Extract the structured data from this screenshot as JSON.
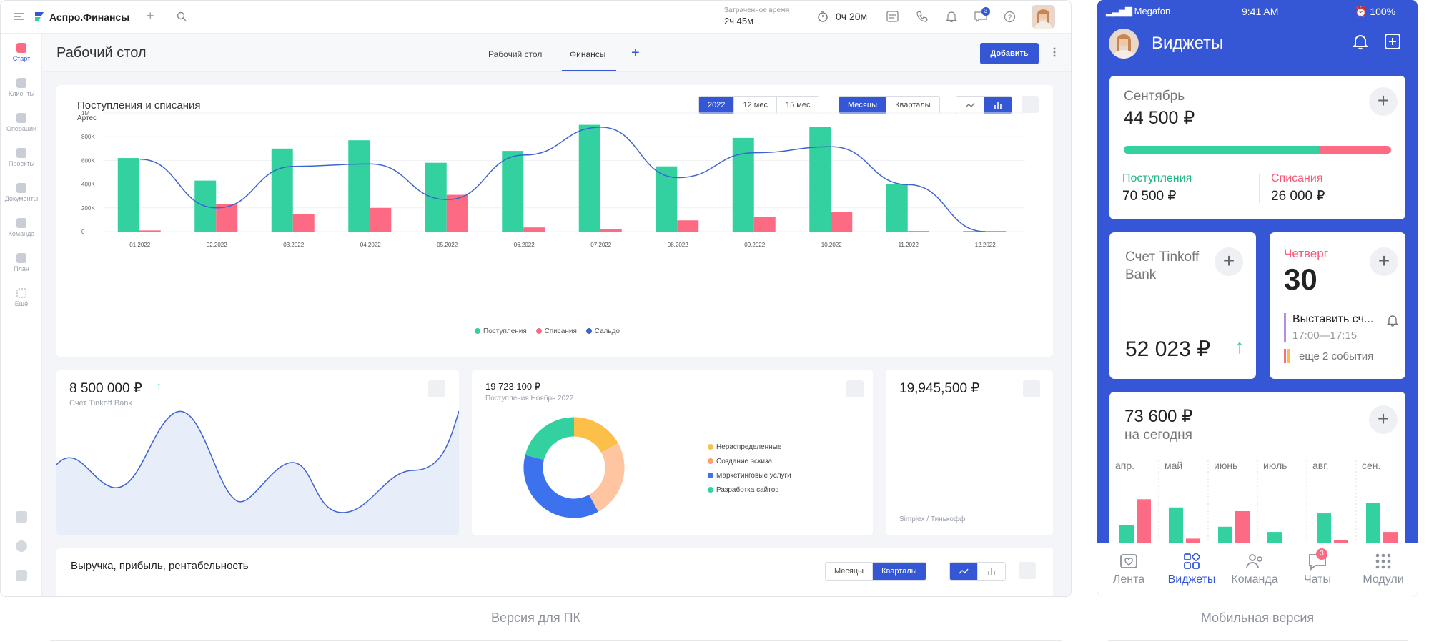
{
  "desktop": {
    "logo_text": "Аспро.Финансы",
    "time_label": "Затраченное время",
    "time_value": "2ч 45м",
    "timer_value": "0ч 20м",
    "chat_badge": "3",
    "sidebar": [
      "Старт",
      "Клиенты",
      "Операции",
      "Проекты",
      "Документы",
      "Команда",
      "План",
      "Ещё"
    ],
    "page_title": "Рабочий стол",
    "tabs": [
      "Рабочий стол",
      "Финансы"
    ],
    "add_button": "Добавить",
    "chart_title": "Поступления и списания",
    "chart_subtitle": "Артес",
    "range_segments": [
      "2022",
      "12 мес",
      "15 мес"
    ],
    "period_segments": [
      "Месяцы",
      "Кварталы"
    ],
    "legend": [
      "Поступления",
      "Списания",
      "Сальдо"
    ],
    "account_value": "8 500 000 ₽",
    "account_label": "Счет Tinkoff Bank",
    "donut_value": "19 723 100 ₽",
    "donut_label": "Поступления Ноябрь 2022",
    "donut_legend": [
      "Нераспределенные",
      "Создание эскиза",
      "Маркетинговые услуги",
      "Разработка сайтов"
    ],
    "balance_value": "19,945,500 ₽",
    "balance_label": "Simplex / Тинькофф",
    "bottom_title": "Выручка, прибыль, рентабельность",
    "bottom_segments": [
      "Месяцы",
      "Кварталы"
    ],
    "caption": "Версия для ПК"
  },
  "mobile": {
    "carrier": "Megafon",
    "clock": "9:41 AM",
    "battery": "100%",
    "title": "Виджеты",
    "month": "Сентябрь",
    "month_total": "44 500 ₽",
    "income_label": "Поступления",
    "income_value": "70 500 ₽",
    "expense_label": "Списания",
    "expense_value": "26 000 ₽",
    "income_share": 0.73,
    "account_name": "Счет Tinkoff Bank",
    "account_value": "52 023 ₽",
    "day_name": "Четверг",
    "day_number": "30",
    "event_title": "Выставить сч...",
    "event_time": "17:00—17:15",
    "more_events": "еще 2 события",
    "today_value": "73 600 ₽",
    "today_label": "на сегодня",
    "months": [
      "апр.",
      "май",
      "июнь",
      "июль",
      "авг.",
      "сен."
    ],
    "tabs": [
      "Лента",
      "Виджеты",
      "Команда",
      "Чаты",
      "Модули"
    ],
    "chat_badge": "3",
    "caption": "Мобильная версия"
  },
  "colors": {
    "accent": "#3557d6",
    "income": "#33d1a0",
    "expense": "#fc6a83",
    "line": "#3d63d2"
  },
  "chart_data": {
    "type": "bar",
    "categories": [
      "01.2022",
      "02.2022",
      "03.2022",
      "04.2022",
      "05.2022",
      "06.2022",
      "07.2022",
      "08.2022",
      "09.2022",
      "10.2022",
      "11.2022",
      "12.2022"
    ],
    "series": [
      {
        "name": "Поступления",
        "values": [
          620000,
          430000,
          700000,
          770000,
          580000,
          680000,
          900000,
          550000,
          790000,
          880000,
          400000,
          5000
        ]
      },
      {
        "name": "Списания",
        "values": [
          10000,
          230000,
          150000,
          200000,
          310000,
          35000,
          20000,
          95000,
          125000,
          165000,
          5000,
          5000
        ]
      },
      {
        "name": "Сальдо",
        "values": [
          610000,
          200000,
          550000,
          570000,
          270000,
          645000,
          880000,
          455000,
          665000,
          715000,
          395000,
          0
        ]
      }
    ],
    "yticks": [
      "0",
      "200K",
      "400K",
      "600K",
      "800K",
      "1M"
    ],
    "ylim": [
      0,
      1000000
    ],
    "donut": [
      {
        "name": "Нераспределенные",
        "value": 17,
        "color": "#fbbf4a"
      },
      {
        "name": "Создание эскиза",
        "value": 25,
        "color": "#fec5a0"
      },
      {
        "name": "Маркетинговые услуги",
        "value": 37,
        "color": "#3c72ee"
      },
      {
        "name": "Разработка сайтов",
        "value": 21,
        "color": "#33d1a0"
      }
    ],
    "mobile_bars": {
      "income": [
        0.32,
        0.56,
        0.3,
        0.23,
        0.48,
        0.62
      ],
      "expense": [
        0.67,
        0.14,
        0.51,
        0.0,
        0.12,
        0.23
      ]
    }
  }
}
